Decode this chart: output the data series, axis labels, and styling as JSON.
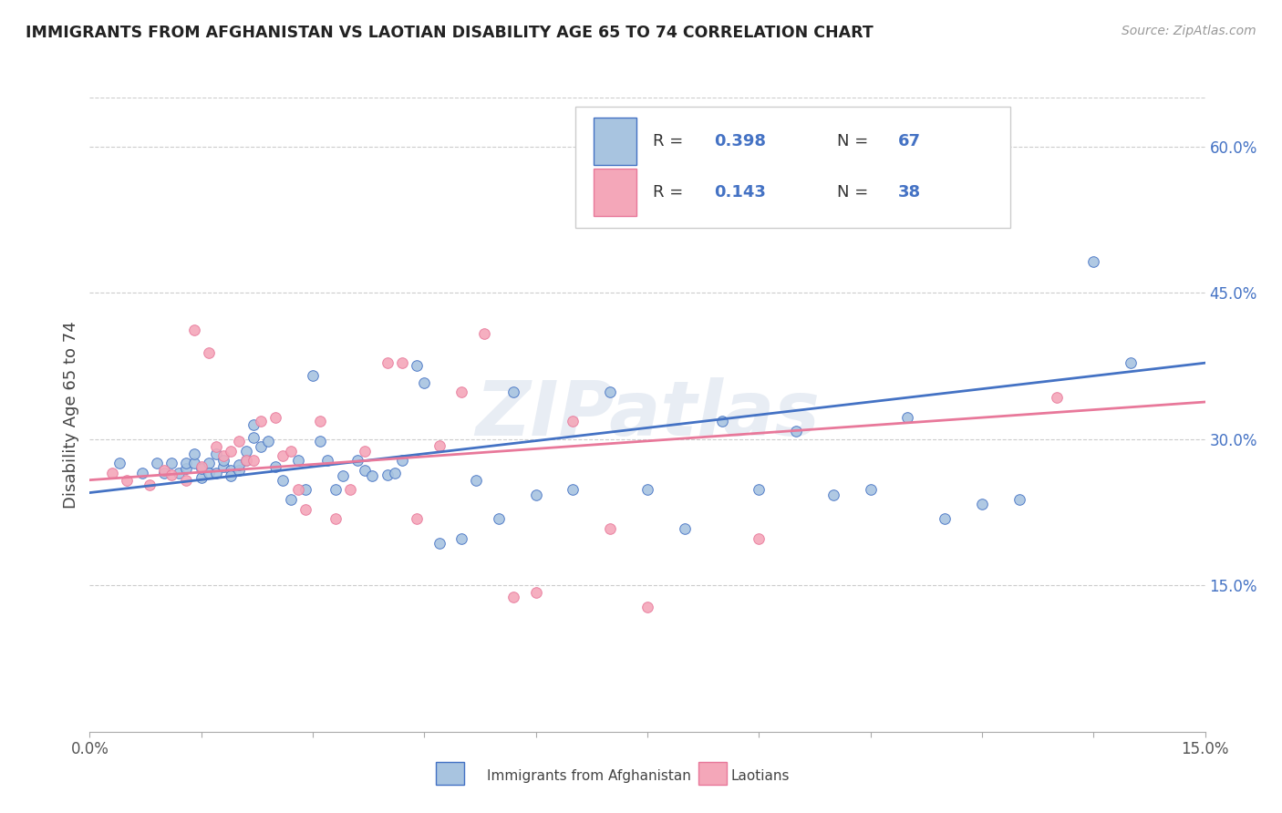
{
  "title": "IMMIGRANTS FROM AFGHANISTAN VS LAOTIAN DISABILITY AGE 65 TO 74 CORRELATION CHART",
  "source": "Source: ZipAtlas.com",
  "ylabel": "Disability Age 65 to 74",
  "xlim": [
    0.0,
    0.15
  ],
  "ylim": [
    0.0,
    0.65
  ],
  "y_ticks_right": [
    0.15,
    0.3,
    0.45,
    0.6
  ],
  "y_tick_labels_right": [
    "15.0%",
    "30.0%",
    "45.0%",
    "60.0%"
  ],
  "afghanistan_color": "#a8c4e0",
  "laotian_color": "#f4a7b9",
  "afghanistan_line_color": "#4472c4",
  "laotian_edge_color": "#e8789a",
  "trend_blue": "#4472c4",
  "trend_pink": "#e8789a",
  "legend_R1": "0.398",
  "legend_N1": "67",
  "legend_R2": "0.143",
  "legend_N2": "38",
  "watermark": "ZIPatlas",
  "background_color": "#ffffff",
  "grid_color": "#cccccc",
  "afghanistan_scatter_x": [
    0.004,
    0.007,
    0.009,
    0.01,
    0.011,
    0.012,
    0.013,
    0.013,
    0.014,
    0.014,
    0.015,
    0.015,
    0.016,
    0.016,
    0.017,
    0.017,
    0.018,
    0.018,
    0.019,
    0.019,
    0.02,
    0.02,
    0.021,
    0.021,
    0.022,
    0.022,
    0.023,
    0.024,
    0.025,
    0.026,
    0.027,
    0.028,
    0.029,
    0.03,
    0.031,
    0.032,
    0.033,
    0.034,
    0.036,
    0.037,
    0.038,
    0.04,
    0.041,
    0.042,
    0.044,
    0.045,
    0.047,
    0.05,
    0.052,
    0.055,
    0.057,
    0.06,
    0.065,
    0.07,
    0.075,
    0.08,
    0.085,
    0.09,
    0.095,
    0.1,
    0.105,
    0.11,
    0.115,
    0.12,
    0.125,
    0.135,
    0.14
  ],
  "afghanistan_scatter_y": [
    0.275,
    0.265,
    0.275,
    0.265,
    0.275,
    0.265,
    0.27,
    0.275,
    0.275,
    0.285,
    0.26,
    0.27,
    0.275,
    0.265,
    0.265,
    0.285,
    0.272,
    0.278,
    0.268,
    0.262,
    0.268,
    0.274,
    0.278,
    0.288,
    0.315,
    0.302,
    0.292,
    0.298,
    0.272,
    0.258,
    0.238,
    0.278,
    0.248,
    0.365,
    0.298,
    0.278,
    0.248,
    0.262,
    0.278,
    0.268,
    0.262,
    0.263,
    0.265,
    0.278,
    0.375,
    0.358,
    0.193,
    0.198,
    0.258,
    0.218,
    0.348,
    0.243,
    0.248,
    0.348,
    0.248,
    0.208,
    0.318,
    0.248,
    0.308,
    0.243,
    0.248,
    0.322,
    0.218,
    0.233,
    0.238,
    0.482,
    0.378
  ],
  "laotian_scatter_x": [
    0.003,
    0.005,
    0.008,
    0.01,
    0.011,
    0.013,
    0.014,
    0.015,
    0.016,
    0.017,
    0.018,
    0.019,
    0.02,
    0.021,
    0.022,
    0.023,
    0.025,
    0.026,
    0.027,
    0.028,
    0.029,
    0.031,
    0.033,
    0.035,
    0.037,
    0.04,
    0.042,
    0.044,
    0.047,
    0.05,
    0.053,
    0.057,
    0.06,
    0.065,
    0.07,
    0.075,
    0.09,
    0.13
  ],
  "laotian_scatter_y": [
    0.265,
    0.258,
    0.253,
    0.268,
    0.263,
    0.258,
    0.412,
    0.272,
    0.388,
    0.292,
    0.283,
    0.288,
    0.298,
    0.278,
    0.278,
    0.318,
    0.322,
    0.283,
    0.288,
    0.248,
    0.228,
    0.318,
    0.218,
    0.248,
    0.288,
    0.378,
    0.378,
    0.218,
    0.293,
    0.348,
    0.408,
    0.138,
    0.143,
    0.318,
    0.208,
    0.128,
    0.198,
    0.343
  ],
  "afg_line_x": [
    0.0,
    0.15
  ],
  "afg_line_y": [
    0.245,
    0.378
  ],
  "lao_line_x": [
    0.0,
    0.15
  ],
  "lao_line_y": [
    0.258,
    0.338
  ]
}
